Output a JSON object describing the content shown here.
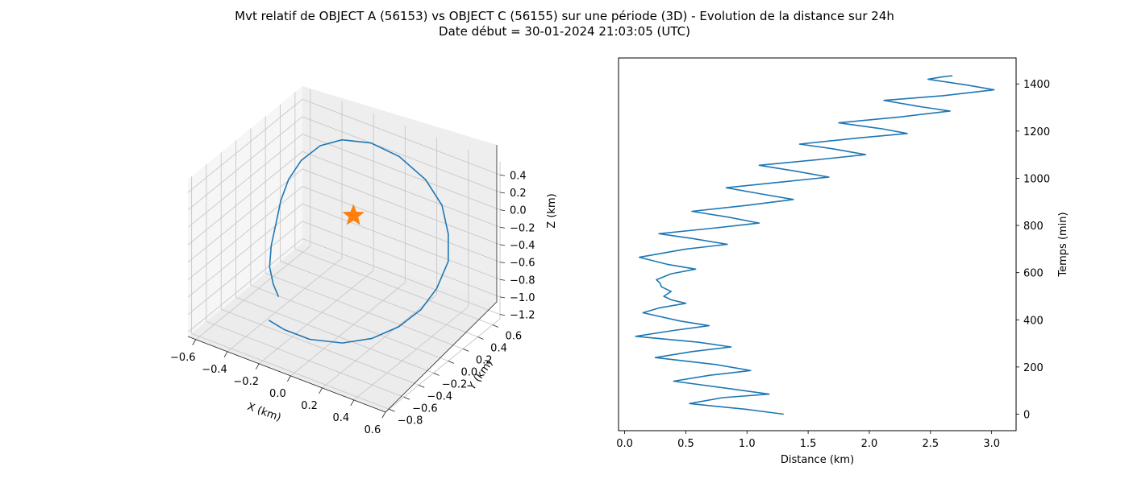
{
  "title": {
    "line1": "Mvt relatif de OBJECT A (56153) vs OBJECT C (56155) sur une période (3D) - Evolution de la distance sur 24h",
    "line2": "Date début = 30-01-2024 21:03:05 (UTC)"
  },
  "colors": {
    "series": "#1f77b4",
    "marker": "#ff7f0e",
    "grid": "#b0b0b0",
    "pane": "#f2f2f2"
  },
  "chart_data": [
    {
      "type": "line3d",
      "xlabel": "X (km)",
      "ylabel": "Y (km)",
      "zlabel": "Z (km)",
      "xlim": [
        -0.65,
        0.6
      ],
      "ylim": [
        -0.85,
        0.7
      ],
      "zlim": [
        -1.25,
        0.55
      ],
      "xticks": [
        "−0.6",
        "−0.4",
        "−0.2",
        "0.0",
        "0.2",
        "0.4",
        "0.6"
      ],
      "yticks": [
        "−0.8",
        "−0.6",
        "−0.4",
        "−0.2",
        "0.0",
        "0.2",
        "0.4",
        "0.6"
      ],
      "zticks": [
        "−1.2",
        "−1.0",
        "−0.8",
        "−0.6",
        "−0.4",
        "−0.2",
        "0.0",
        "0.2",
        "0.4"
      ],
      "grid": true,
      "marker": {
        "shape": "star",
        "x": 0,
        "y": 0,
        "z": 0
      },
      "series": [
        {
          "x": [
            -0.17,
            -0.25,
            -0.32,
            -0.38,
            -0.42,
            -0.46,
            -0.48,
            -0.47,
            -0.42,
            -0.33,
            -0.18,
            0.0,
            0.2,
            0.35,
            0.46,
            0.53,
            0.55,
            0.52,
            0.45,
            0.35,
            0.22,
            0.05,
            -0.1,
            -0.2
          ],
          "y": [
            -0.65,
            -0.55,
            -0.45,
            -0.3,
            -0.15,
            0.0,
            0.15,
            0.3,
            0.45,
            0.55,
            0.62,
            0.62,
            0.55,
            0.45,
            0.3,
            0.15,
            -0.05,
            -0.2,
            -0.35,
            -0.5,
            -0.62,
            -0.7,
            -0.72,
            -0.72
          ],
          "z": [
            -0.6,
            -0.58,
            -0.5,
            -0.4,
            -0.28,
            -0.15,
            -0.02,
            0.1,
            0.2,
            0.26,
            0.28,
            0.25,
            0.17,
            0.05,
            -0.1,
            -0.26,
            -0.42,
            -0.58,
            -0.72,
            -0.82,
            -0.88,
            -0.9,
            -0.88,
            -0.84
          ]
        }
      ]
    },
    {
      "type": "line",
      "xlabel": "Distance (km)",
      "ylabel": "Temps (min)",
      "xlim": [
        -0.05,
        3.2
      ],
      "ylim": [
        -70,
        1510
      ],
      "xticks": [
        0.0,
        0.5,
        1.0,
        1.5,
        2.0,
        2.5,
        3.0
      ],
      "xtick_labels": [
        "0.0",
        "0.5",
        "1.0",
        "1.5",
        "2.0",
        "2.5",
        "3.0"
      ],
      "yticks": [
        0,
        200,
        400,
        600,
        800,
        1000,
        1200,
        1400
      ],
      "yticks_side": "right",
      "grid": false,
      "series": [
        {
          "x": [
            1.3,
            1.0,
            0.53,
            0.8,
            1.18,
            0.9,
            0.4,
            0.7,
            1.03,
            0.75,
            0.25,
            0.55,
            0.87,
            0.6,
            0.09,
            0.4,
            0.69,
            0.45,
            0.15,
            0.28,
            0.5,
            0.38,
            0.32,
            0.38,
            0.3,
            0.29,
            0.26,
            0.38,
            0.58,
            0.35,
            0.12,
            0.5,
            0.84,
            0.55,
            0.28,
            0.75,
            1.1,
            0.85,
            0.55,
            1.0,
            1.38,
            1.1,
            0.83,
            1.3,
            1.67,
            1.4,
            1.1,
            1.6,
            1.97,
            1.7,
            1.43,
            1.9,
            2.31,
            2.1,
            1.75,
            2.25,
            2.66,
            2.4,
            2.12,
            2.6,
            3.02,
            2.8,
            2.48,
            2.6,
            2.68
          ],
          "y": [
            0,
            20,
            45,
            70,
            85,
            105,
            140,
            165,
            185,
            210,
            240,
            265,
            285,
            305,
            330,
            355,
            375,
            395,
            430,
            450,
            470,
            485,
            500,
            520,
            540,
            555,
            570,
            595,
            615,
            635,
            665,
            700,
            720,
            745,
            765,
            790,
            810,
            835,
            860,
            885,
            910,
            935,
            960,
            985,
            1005,
            1030,
            1055,
            1080,
            1100,
            1125,
            1145,
            1170,
            1190,
            1210,
            1235,
            1260,
            1285,
            1305,
            1330,
            1350,
            1375,
            1395,
            1420,
            1430,
            1435
          ]
        }
      ]
    }
  ]
}
